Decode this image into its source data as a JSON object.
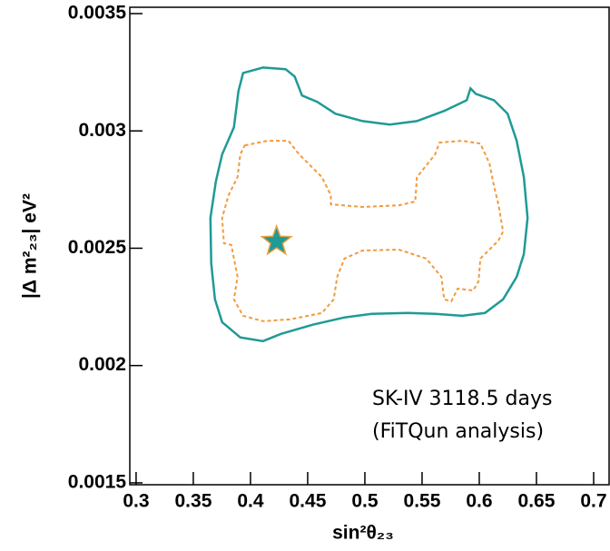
{
  "chart_data": {
    "type": "contour",
    "xlabel": "sin²θ₂₃",
    "ylabel": "|Δ m²₂₃| eV²",
    "annotations": [
      "SK-IV 3118.5 days",
      "(FiTQun analysis)"
    ],
    "xlim": [
      0.2945,
      0.7135
    ],
    "ylim": [
      0.001492,
      0.003527
    ],
    "xticks": [
      0.3,
      0.35,
      0.4,
      0.45,
      0.5,
      0.55,
      0.6,
      0.65,
      0.7
    ],
    "yticks": [
      0.0015,
      0.002,
      0.0025,
      0.003,
      0.0035
    ],
    "series": [
      {
        "color": "#1f9a96",
        "style": "solid",
        "x": [
          0.3935,
          0.4109,
          0.4307,
          0.4386,
          0.445,
          0.4584,
          0.4743,
          0.498,
          0.5218,
          0.5455,
          0.5693,
          0.5891,
          0.5923,
          0.597,
          0.6129,
          0.6248,
          0.6327,
          0.639,
          0.6422,
          0.639,
          0.6327,
          0.6208,
          0.605,
          0.5851,
          0.5614,
          0.5376,
          0.5059,
          0.4822,
          0.4545,
          0.4267,
          0.4109,
          0.3911,
          0.3752,
          0.3689,
          0.3657,
          0.365,
          0.3697,
          0.3752,
          0.3855,
          0.3895
        ],
        "y": [
          0.003247,
          0.00327,
          0.003263,
          0.003232,
          0.003151,
          0.003124,
          0.003073,
          0.003042,
          0.003027,
          0.003042,
          0.003085,
          0.003131,
          0.003181,
          0.003158,
          0.003131,
          0.003073,
          0.002958,
          0.002803,
          0.002629,
          0.002475,
          0.002378,
          0.002282,
          0.002224,
          0.002212,
          0.00222,
          0.002224,
          0.00222,
          0.002205,
          0.002174,
          0.002135,
          0.002104,
          0.00212,
          0.002185,
          0.002282,
          0.002436,
          0.002629,
          0.002784,
          0.0029,
          0.003015,
          0.00317
        ]
      },
      {
        "color": "#f39a3c",
        "style": "dashed",
        "x": [
          0.395,
          0.4149,
          0.4331,
          0.4426,
          0.4624,
          0.4703,
          0.4703,
          0.498,
          0.5297,
          0.544,
          0.5455,
          0.5614,
          0.5653,
          0.5851,
          0.601,
          0.6089,
          0.6129,
          0.6168,
          0.6208,
          0.6168,
          0.6089,
          0.601,
          0.5994,
          0.5947,
          0.5812,
          0.5756,
          0.5693,
          0.5669,
          0.5535,
          0.5297,
          0.498,
          0.4822,
          0.4758,
          0.4727,
          0.4624,
          0.4347,
          0.4109,
          0.3935,
          0.3855,
          0.3887,
          0.3832,
          0.3768,
          0.3752,
          0.3808,
          0.3887,
          0.3911
        ],
        "y": [
          0.002938,
          0.002958,
          0.002958,
          0.0029,
          0.002803,
          0.002726,
          0.002687,
          0.002676,
          0.002683,
          0.002699,
          0.002803,
          0.0029,
          0.00295,
          0.002958,
          0.002946,
          0.002861,
          0.002764,
          0.002687,
          0.002571,
          0.002533,
          0.002494,
          0.002456,
          0.002359,
          0.00232,
          0.002328,
          0.002274,
          0.002282,
          0.002378,
          0.002456,
          0.002494,
          0.00249,
          0.002456,
          0.002378,
          0.002282,
          0.002224,
          0.002197,
          0.002189,
          0.002212,
          0.002282,
          0.002378,
          0.002514,
          0.002521,
          0.002629,
          0.002726,
          0.002803,
          0.0029
        ]
      },
      {
        "color": "#1f9a96",
        "edgecolor": "#e8a040",
        "marker": "star",
        "x": [
          0.4228
        ],
        "y": [
          0.002529
        ]
      }
    ]
  }
}
